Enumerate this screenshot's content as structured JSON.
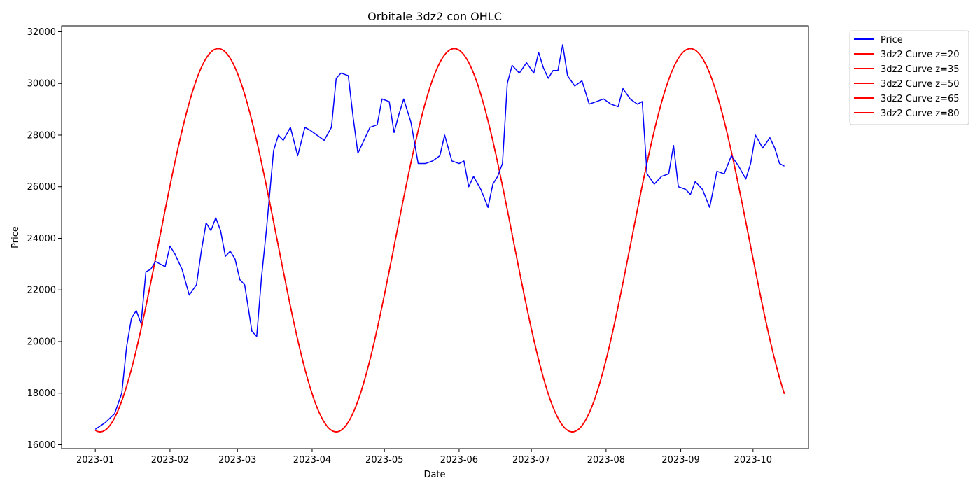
{
  "chart_data": {
    "type": "line",
    "title": "Orbitale 3dz2 con OHLC",
    "xlabel": "Date",
    "ylabel": "Price",
    "xlim": [
      "2022-12-18",
      "2023-10-24"
    ],
    "ylim": [
      15850,
      32230
    ],
    "x_ticks": [
      "2023-01",
      "2023-02",
      "2023-03",
      "2023-04",
      "2023-05",
      "2023-06",
      "2023-07",
      "2023-08",
      "2023-09",
      "2023-10"
    ],
    "y_ticks": [
      16000,
      18000,
      20000,
      22000,
      24000,
      26000,
      28000,
      30000,
      32000
    ],
    "grid": false,
    "legend_position": "outside-top-right",
    "colors": {
      "price": "#0000ff",
      "curve": "#ff0000"
    },
    "price_series": {
      "name": "Price",
      "x": [
        "2023-01-01",
        "2023-01-05",
        "2023-01-09",
        "2023-01-12",
        "2023-01-14",
        "2023-01-16",
        "2023-01-18",
        "2023-01-20",
        "2023-01-22",
        "2023-01-24",
        "2023-01-26",
        "2023-01-28",
        "2023-01-30",
        "2023-02-01",
        "2023-02-03",
        "2023-02-06",
        "2023-02-09",
        "2023-02-12",
        "2023-02-14",
        "2023-02-16",
        "2023-02-18",
        "2023-02-20",
        "2023-02-22",
        "2023-02-24",
        "2023-02-26",
        "2023-02-28",
        "2023-03-02",
        "2023-03-04",
        "2023-03-07",
        "2023-03-09",
        "2023-03-11",
        "2023-03-13",
        "2023-03-16",
        "2023-03-18",
        "2023-03-20",
        "2023-03-23",
        "2023-03-26",
        "2023-03-29",
        "2023-03-31",
        "2023-04-03",
        "2023-04-06",
        "2023-04-09",
        "2023-04-11",
        "2023-04-13",
        "2023-04-16",
        "2023-04-18",
        "2023-04-20",
        "2023-04-22",
        "2023-04-25",
        "2023-04-28",
        "2023-04-30",
        "2023-05-03",
        "2023-05-05",
        "2023-05-07",
        "2023-05-09",
        "2023-05-12",
        "2023-05-15",
        "2023-05-18",
        "2023-05-21",
        "2023-05-24",
        "2023-05-26",
        "2023-05-29",
        "2023-06-01",
        "2023-06-03",
        "2023-06-05",
        "2023-06-07",
        "2023-06-10",
        "2023-06-13",
        "2023-06-15",
        "2023-06-17",
        "2023-06-19",
        "2023-06-21",
        "2023-06-23",
        "2023-06-26",
        "2023-06-29",
        "2023-07-02",
        "2023-07-04",
        "2023-07-06",
        "2023-07-08",
        "2023-07-10",
        "2023-07-12",
        "2023-07-14",
        "2023-07-16",
        "2023-07-19",
        "2023-07-22",
        "2023-07-25",
        "2023-07-28",
        "2023-07-31",
        "2023-08-03",
        "2023-08-06",
        "2023-08-08",
        "2023-08-11",
        "2023-08-14",
        "2023-08-16",
        "2023-08-18",
        "2023-08-21",
        "2023-08-24",
        "2023-08-27",
        "2023-08-29",
        "2023-08-31",
        "2023-09-03",
        "2023-09-05",
        "2023-09-07",
        "2023-09-10",
        "2023-09-13",
        "2023-09-16",
        "2023-09-19",
        "2023-09-22",
        "2023-09-25",
        "2023-09-28",
        "2023-09-30",
        "2023-10-02",
        "2023-10-05",
        "2023-10-08",
        "2023-10-10",
        "2023-10-12",
        "2023-10-14"
      ],
      "y": [
        16600,
        16850,
        17200,
        18000,
        19800,
        20900,
        21200,
        20700,
        22700,
        22800,
        23100,
        23000,
        22900,
        23700,
        23400,
        22800,
        21800,
        22200,
        23500,
        24600,
        24300,
        24800,
        24300,
        23300,
        23500,
        23200,
        22400,
        22200,
        20400,
        20200,
        22500,
        24300,
        27400,
        28000,
        27800,
        28300,
        27200,
        28300,
        28200,
        28000,
        27800,
        28300,
        30200,
        30400,
        30300,
        28700,
        27300,
        27700,
        28300,
        28400,
        29400,
        29300,
        28100,
        28800,
        29400,
        28500,
        26900,
        26900,
        27000,
        27200,
        28000,
        27000,
        26900,
        27000,
        26000,
        26400,
        25900,
        25200,
        26100,
        26400,
        26900,
        30000,
        30700,
        30400,
        30800,
        30400,
        31200,
        30600,
        30200,
        30500,
        30500,
        31500,
        30300,
        29900,
        30100,
        29200,
        29300,
        29400,
        29200,
        29100,
        29800,
        29400,
        29200,
        29300,
        26500,
        26100,
        26400,
        26500,
        27600,
        26000,
        25900,
        25700,
        26200,
        25900,
        25200,
        26600,
        26500,
        27200,
        26800,
        26300,
        26900,
        28000,
        27500,
        27900,
        27500,
        26900,
        26800
      ]
    },
    "curves": [
      {
        "name": "3dz2 Curve z=20"
      },
      {
        "name": "3dz2 Curve z=35"
      },
      {
        "name": "3dz2 Curve z=50"
      },
      {
        "name": "3dz2 Curve z=65"
      },
      {
        "name": "3dz2 Curve z=80"
      }
    ],
    "curve_params": {
      "min": 16500,
      "max": 31350,
      "period_days": 98,
      "first_peak": "2023-02-21",
      "x_end": "2023-10-14"
    }
  }
}
